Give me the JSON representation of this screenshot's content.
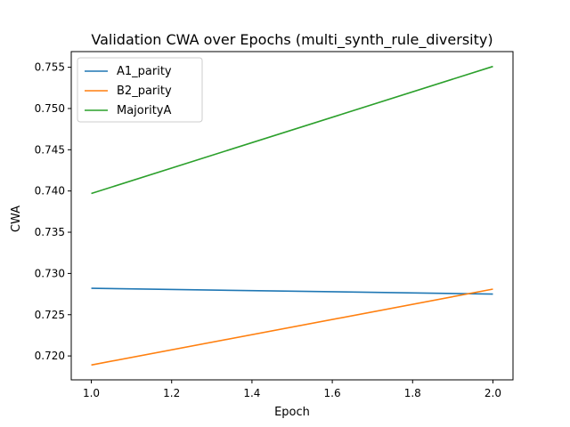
{
  "chart_data": {
    "type": "line",
    "title": "Validation CWA over Epochs (multi_synth_rule_diversity)",
    "xlabel": "Epoch",
    "ylabel": "CWA",
    "x": [
      1.0,
      2.0
    ],
    "xlim": [
      0.95,
      2.05
    ],
    "ylim": [
      0.7171,
      0.7569
    ],
    "xticks": [
      1.0,
      1.2,
      1.4,
      1.6,
      1.8,
      2.0
    ],
    "xtick_labels": [
      "1.0",
      "1.2",
      "1.4",
      "1.6",
      "1.8",
      "2.0"
    ],
    "yticks": [
      0.72,
      0.725,
      0.73,
      0.735,
      0.74,
      0.745,
      0.75,
      0.755
    ],
    "ytick_labels": [
      "0.720",
      "0.725",
      "0.730",
      "0.735",
      "0.740",
      "0.745",
      "0.750",
      "0.755"
    ],
    "grid": false,
    "legend_position": "top-left",
    "series": [
      {
        "name": "A1_parity",
        "color": "#1f77b4",
        "values": [
          0.7282,
          0.7275
        ]
      },
      {
        "name": "B2_parity",
        "color": "#ff7f0e",
        "values": [
          0.7189,
          0.7281
        ]
      },
      {
        "name": "MajorityA",
        "color": "#2ca02c",
        "values": [
          0.7397,
          0.7551
        ]
      }
    ]
  }
}
